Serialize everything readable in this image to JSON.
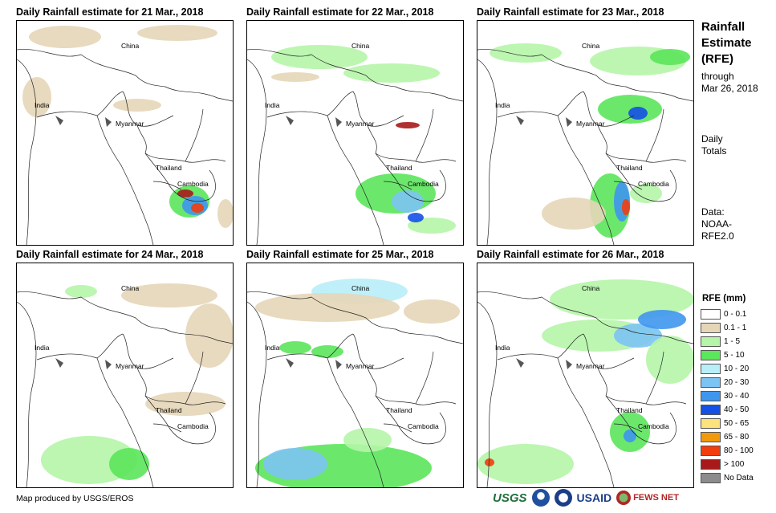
{
  "panels": [
    {
      "title": "Daily Rainfall estimate for 21 Mar., 2018"
    },
    {
      "title": "Daily Rainfall estimate for 22 Mar., 2018"
    },
    {
      "title": "Daily Rainfall estimate for 23 Mar., 2018"
    },
    {
      "title": "Daily Rainfall estimate for 24 Mar., 2018"
    },
    {
      "title": "Daily Rainfall estimate for 25 Mar., 2018"
    },
    {
      "title": "Daily Rainfall estimate for 26 Mar., 2018"
    }
  ],
  "country_labels": {
    "china": "China",
    "india": "India",
    "myanmar": "Myanmar",
    "thailand": "Thailand",
    "cambodia": "Cambodia"
  },
  "side": {
    "title_line1": "Rainfall",
    "title_line2": "Estimate",
    "title_line3": "(RFE)",
    "through": "through",
    "date": "Mar 26, 2018",
    "daily": "Daily",
    "totals": "Totals",
    "data_label": "Data:",
    "data_src1": "NOAA-",
    "data_src2": "RFE2.0"
  },
  "legend": {
    "title": "RFE (mm)",
    "items": [
      {
        "label": "0 - 0.1",
        "color": "#ffffff"
      },
      {
        "label": "0.1 - 1",
        "color": "#e6d6b8"
      },
      {
        "label": "1 - 5",
        "color": "#b5f5a8"
      },
      {
        "label": "5 - 10",
        "color": "#5be65b"
      },
      {
        "label": "10 - 20",
        "color": "#b8eef8"
      },
      {
        "label": "20 - 30",
        "color": "#7cc4f4"
      },
      {
        "label": "30 - 40",
        "color": "#3f96ee"
      },
      {
        "label": "40 - 50",
        "color": "#1450e6"
      },
      {
        "label": "50 - 65",
        "color": "#fbe27a"
      },
      {
        "label": "65 - 80",
        "color": "#f29a0d"
      },
      {
        "label": "80 - 100",
        "color": "#f23d0d"
      },
      {
        "label": "> 100",
        "color": "#a81a1a"
      },
      {
        "label": "No Data",
        "color": "#8c8c8c"
      }
    ]
  },
  "footer": "Map produced by USGS/EROS",
  "logos": {
    "usgs": "USGS",
    "usaid": "USAID",
    "fews": "FEWS NET"
  }
}
